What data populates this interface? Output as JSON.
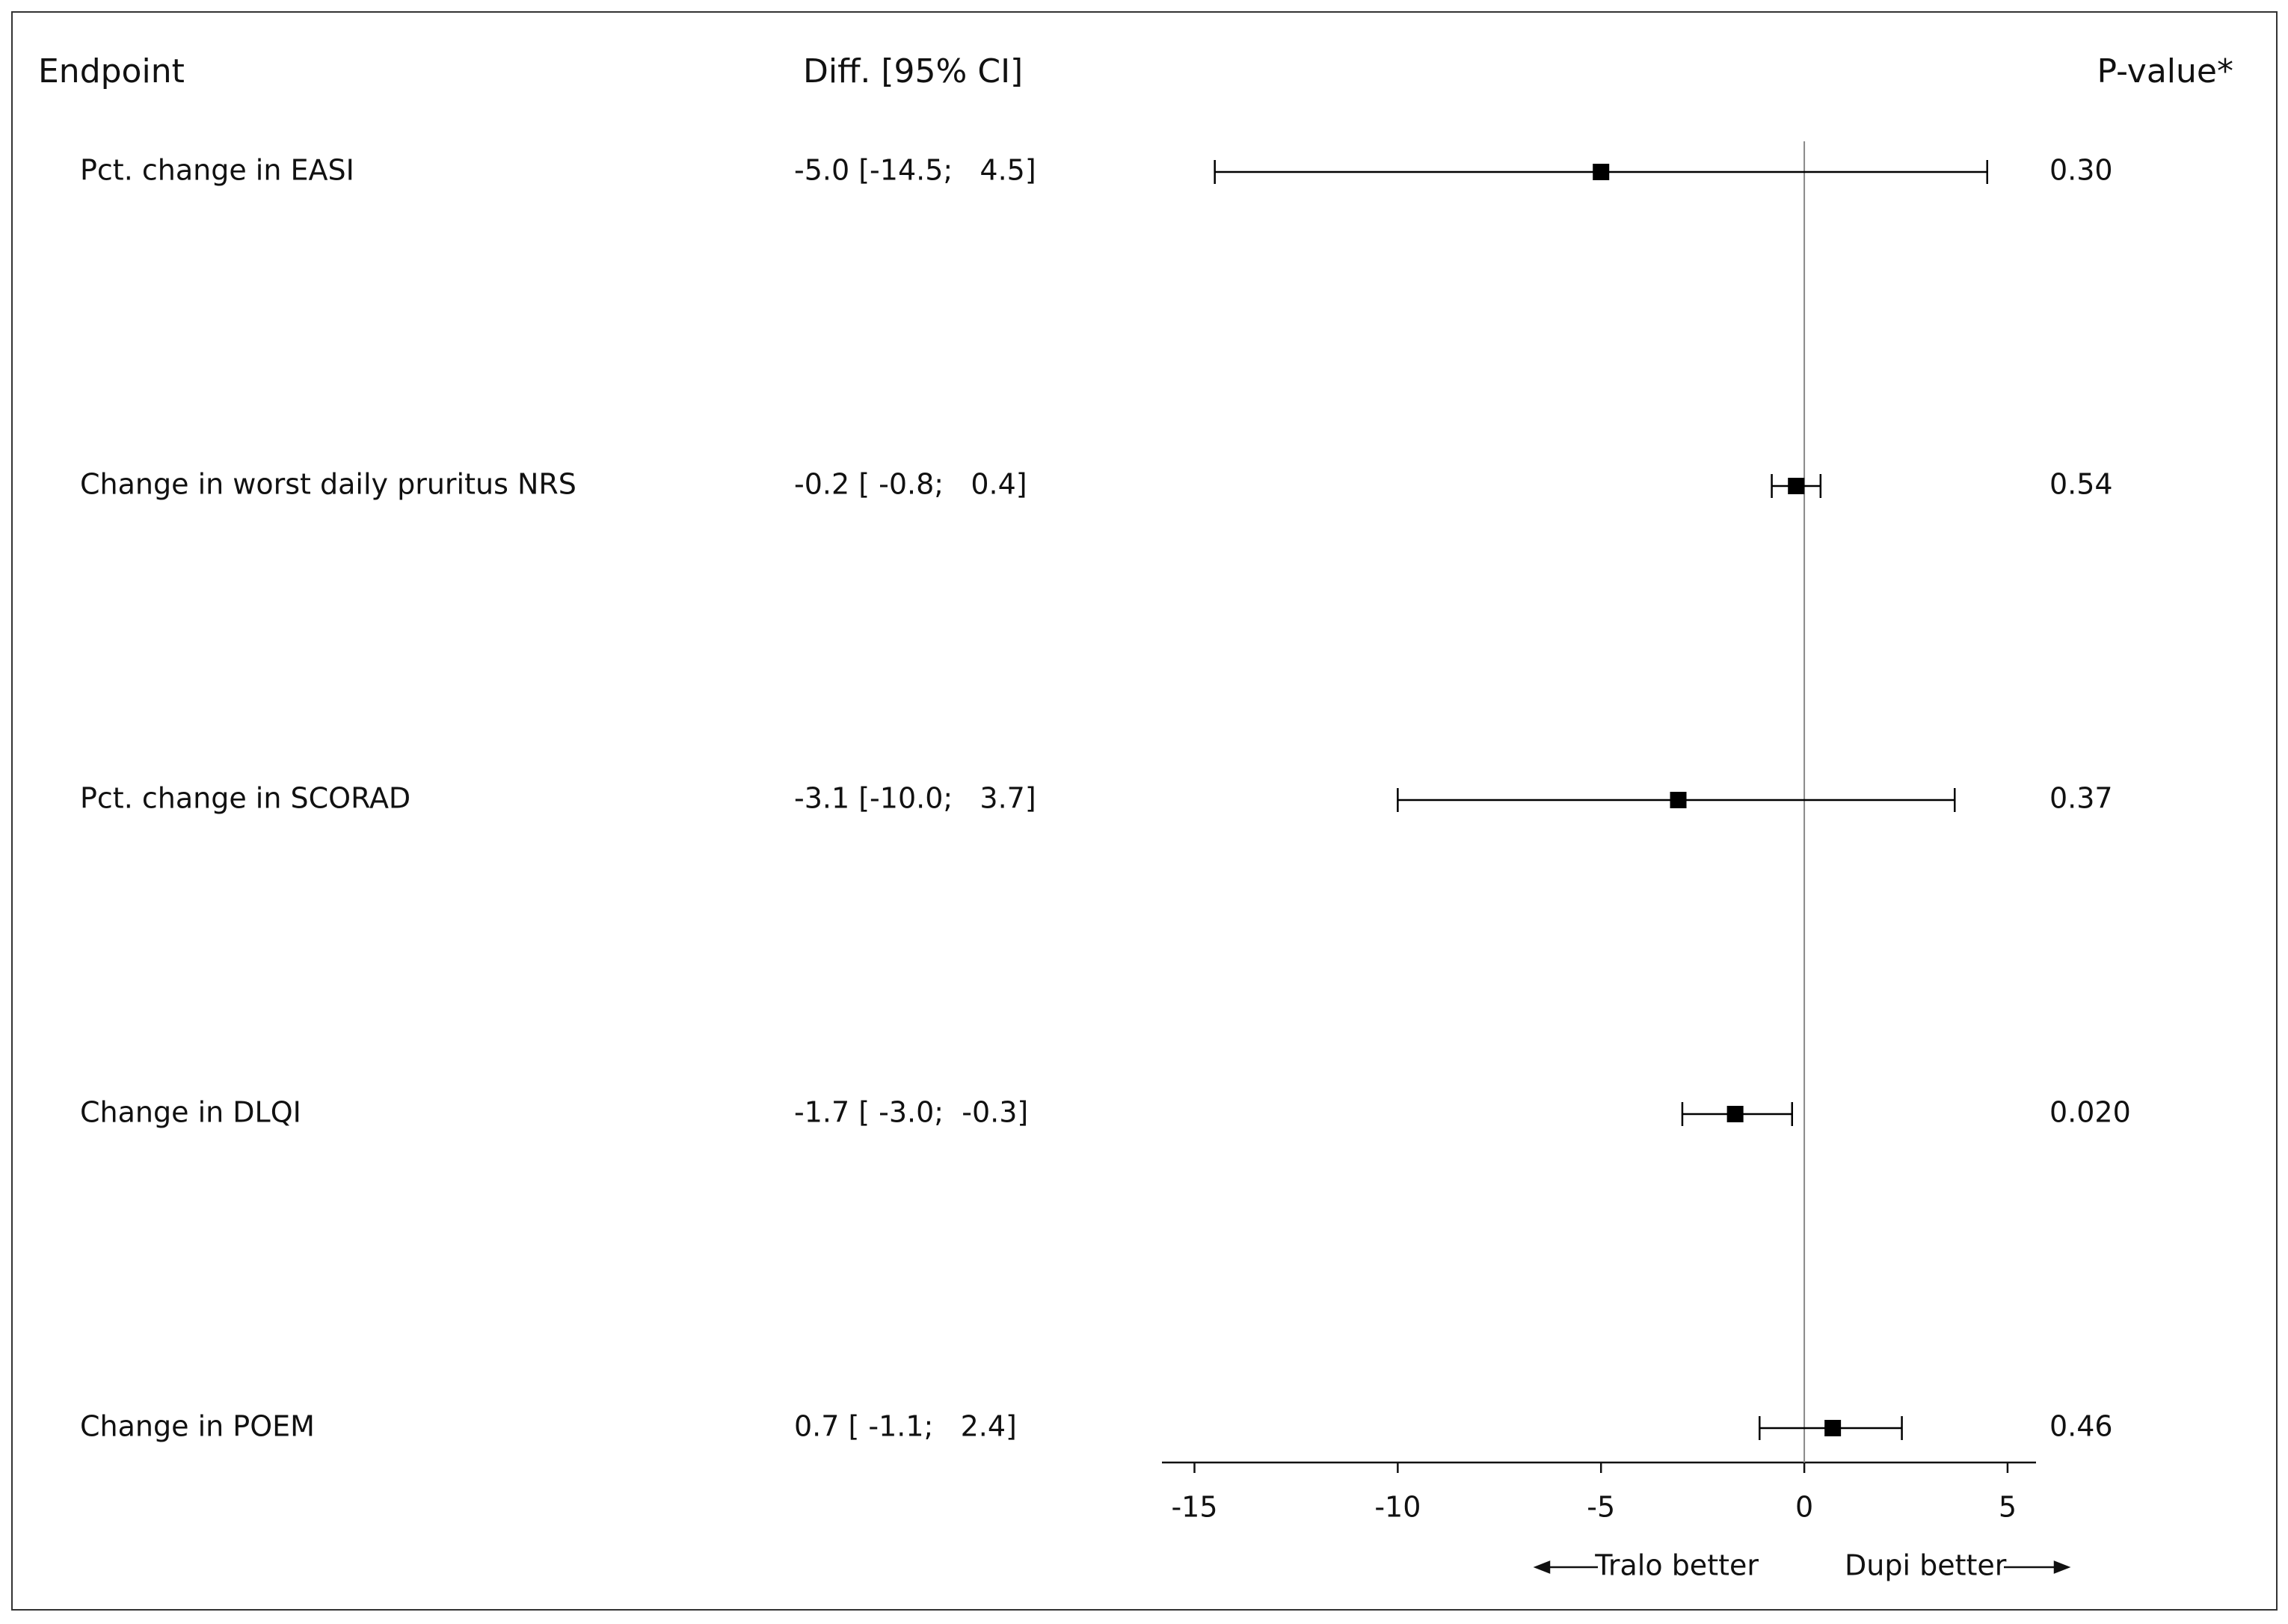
{
  "chart_data": {
    "type": "forest",
    "headers": [
      "Endpoint",
      "Diff. [95% CI]",
      "P-value*"
    ],
    "categories": [
      "Pct. change in EASI",
      "Change in worst daily pruritus NRS",
      "Pct. change in SCORAD",
      "Change in DLQI",
      "Change in POEM"
    ],
    "values": [
      -5.0,
      -0.2,
      -3.1,
      -1.7,
      0.7
    ],
    "lower": [
      -14.5,
      -0.8,
      -10.0,
      -3.0,
      -1.1
    ],
    "upper": [
      4.5,
      0.4,
      3.7,
      -0.3,
      2.4
    ],
    "ci_labels": [
      "-5.0 [-14.5;   4.5]",
      "-0.2 [ -0.8;   0.4]",
      "-3.1 [-10.0;   3.7]",
      "-1.7 [ -3.0;  -0.3]",
      "0.7 [ -1.1;   2.4]"
    ],
    "p_values": [
      "0.30",
      "0.54",
      "0.37",
      "0.020",
      "0.46"
    ],
    "xlim": [
      -15.8,
      5.7
    ],
    "xticks": [
      -15,
      -10,
      -5,
      0,
      5
    ],
    "reference_line": 0,
    "annotations": [
      "Tralo better",
      "Dupi better"
    ],
    "color": "#000000"
  }
}
